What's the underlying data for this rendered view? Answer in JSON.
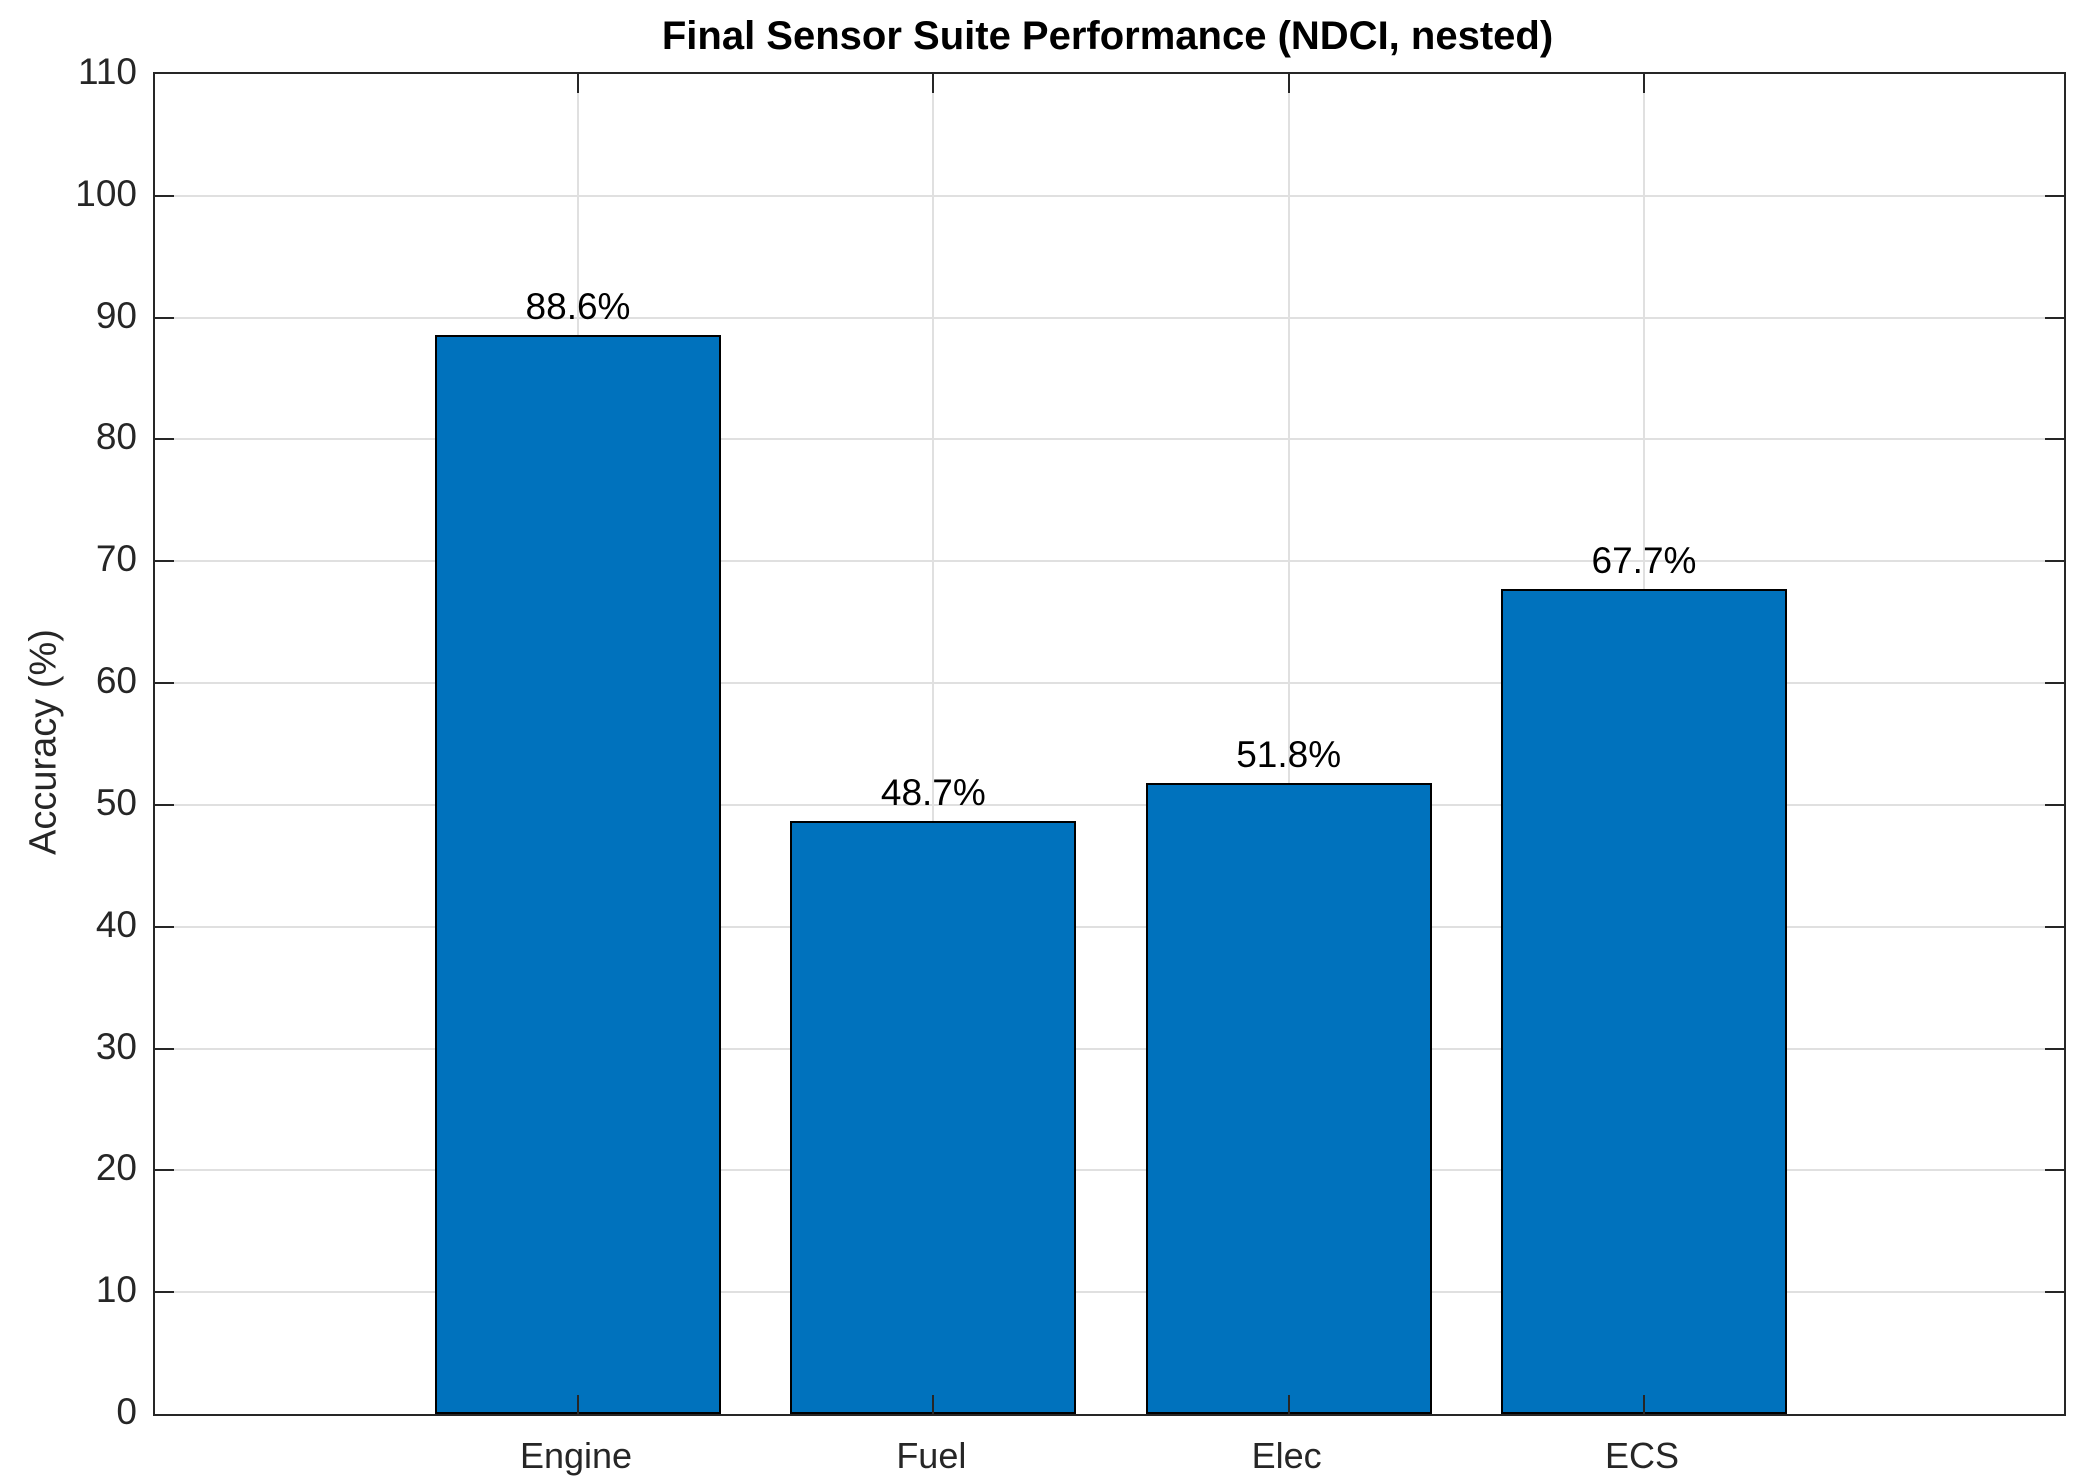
{
  "chart_data": {
    "type": "bar",
    "title": "Final Sensor Suite Performance (NDCI, nested)",
    "ylabel": "Accuracy (%)",
    "xlabel": "",
    "categories": [
      "Engine",
      "Fuel",
      "Elec",
      "ECS"
    ],
    "values": [
      88.6,
      48.7,
      51.8,
      67.7
    ],
    "value_labels": [
      "88.6%",
      "48.7%",
      "51.8%",
      "67.7%"
    ],
    "ylim": [
      0,
      110
    ],
    "ytick_step": 10,
    "ytick_labels": [
      "0",
      "10",
      "20",
      "30",
      "40",
      "50",
      "60",
      "70",
      "80",
      "90",
      "100",
      "110"
    ],
    "grid": true,
    "legend": "none",
    "bar_width_fraction": 0.8,
    "colors": {
      "bar_fill": "#0072BD",
      "bar_edge": "#000000",
      "axis_box": "#262626",
      "grid_line": "#E0E0E0",
      "tick_text": "#262626",
      "title_text": "#000000",
      "value_text": "#000000",
      "background": "#FFFFFF"
    }
  }
}
